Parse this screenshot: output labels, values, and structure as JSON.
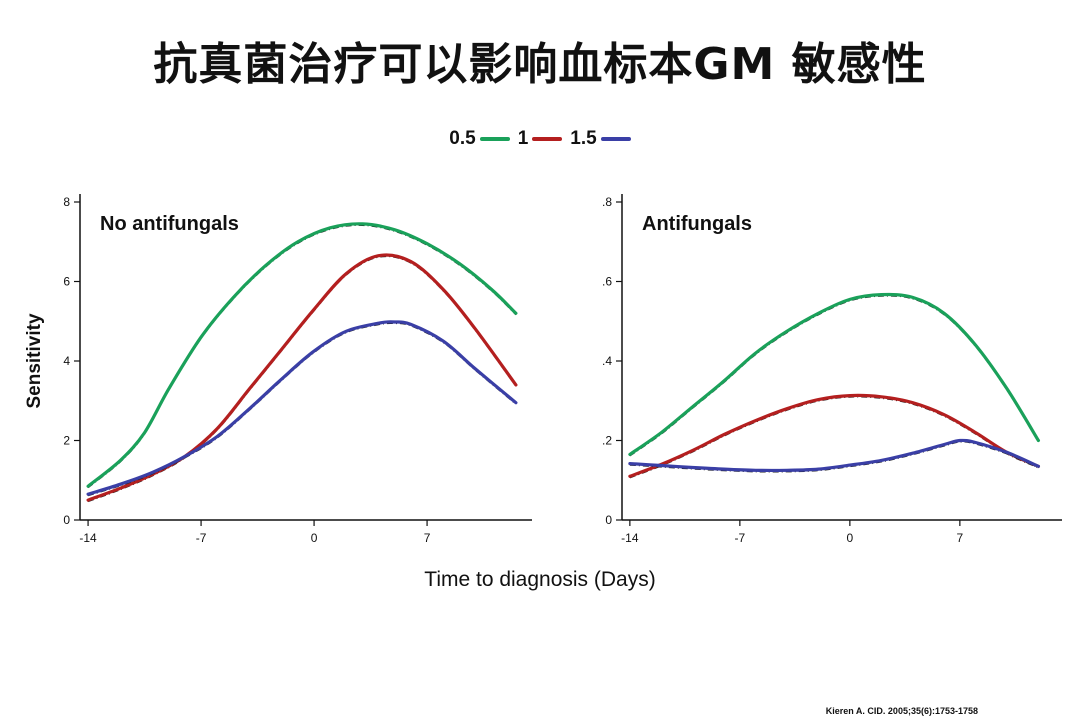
{
  "title": "抗真菌治疗可以影响血标本GM 敏感性",
  "legend": [
    {
      "label": "0.5",
      "color": "#1aa15a"
    },
    {
      "label": "1",
      "color": "#b41f1f"
    },
    {
      "label": "1.5",
      "color": "#3a3fa6"
    }
  ],
  "shared_xlabel": "Time to diagnosis  (Days)",
  "citation": "Kieren A. CID. 2005;35(6):1753-1758",
  "chart_data": [
    {
      "type": "line",
      "title": "No antifungals",
      "ylabel": "Sensitivity",
      "xlim": [
        -14.5,
        13.5
      ],
      "ylim": [
        0,
        8
      ],
      "xticks": [
        -14,
        -7,
        0,
        7
      ],
      "xtick_labels": [
        "-14",
        "-7",
        "0",
        "7"
      ],
      "yticks": [
        0,
        2,
        4,
        6,
        8
      ],
      "ytick_labels": [
        "0",
        "2",
        "4",
        "6",
        "8"
      ],
      "series": [
        {
          "name": "0.5",
          "color": "#1aa15a",
          "x": [
            -14,
            -12,
            -10.5,
            -9,
            -7,
            -5,
            -3,
            -1,
            1,
            3,
            5,
            7,
            9,
            11,
            12.5
          ],
          "y": [
            0.85,
            1.5,
            2.2,
            3.3,
            4.6,
            5.6,
            6.4,
            7.0,
            7.35,
            7.45,
            7.3,
            6.95,
            6.45,
            5.8,
            5.2
          ]
        },
        {
          "name": "1",
          "color": "#b41f1f",
          "x": [
            -14,
            -12,
            -10,
            -8,
            -6,
            -4,
            -2,
            0,
            2,
            4,
            6,
            8,
            10,
            12.5
          ],
          "y": [
            0.5,
            0.8,
            1.15,
            1.6,
            2.3,
            3.3,
            4.3,
            5.3,
            6.2,
            6.65,
            6.5,
            5.8,
            4.8,
            3.4
          ]
        },
        {
          "name": "1.5",
          "color": "#3a3fa6",
          "x": [
            -14,
            -12,
            -10,
            -8,
            -6,
            -4,
            -2,
            0,
            2,
            4,
            5,
            6,
            8,
            10,
            12.5
          ],
          "y": [
            0.65,
            0.9,
            1.2,
            1.6,
            2.1,
            2.8,
            3.55,
            4.25,
            4.75,
            4.95,
            4.98,
            4.92,
            4.5,
            3.8,
            2.95
          ]
        }
      ]
    },
    {
      "type": "line",
      "title": "Antifungals",
      "ylabel": "",
      "xlim": [
        -14.5,
        13.5
      ],
      "ylim": [
        0,
        0.8
      ],
      "xticks": [
        -14,
        -7,
        0,
        7
      ],
      "xtick_labels": [
        "-14",
        "-7",
        "0",
        "7"
      ],
      "yticks": [
        0,
        0.2,
        0.4,
        0.6,
        0.8
      ],
      "ytick_labels": [
        "0",
        ".2",
        ".4",
        ".6",
        ".8"
      ],
      "series": [
        {
          "name": "0.5",
          "color": "#1aa15a",
          "x": [
            -14,
            -12,
            -10,
            -8,
            -6,
            -4,
            -2,
            0,
            2,
            4,
            6,
            8,
            10,
            12
          ],
          "y": [
            0.165,
            0.22,
            0.285,
            0.35,
            0.42,
            0.475,
            0.52,
            0.555,
            0.567,
            0.56,
            0.52,
            0.44,
            0.33,
            0.2
          ]
        },
        {
          "name": "1",
          "color": "#b41f1f",
          "x": [
            -14,
            -12,
            -10,
            -8,
            -6,
            -4,
            -2,
            0,
            2,
            4,
            6,
            8,
            10,
            12
          ],
          "y": [
            0.11,
            0.14,
            0.175,
            0.215,
            0.25,
            0.28,
            0.303,
            0.313,
            0.31,
            0.295,
            0.265,
            0.22,
            0.17,
            0.135
          ]
        },
        {
          "name": "1.5",
          "color": "#3a3fa6",
          "x": [
            -14,
            -12,
            -10,
            -8,
            -6,
            -4,
            -2,
            0,
            2,
            4,
            6,
            7,
            8,
            10,
            12
          ],
          "y": [
            0.142,
            0.137,
            0.132,
            0.128,
            0.125,
            0.125,
            0.128,
            0.138,
            0.15,
            0.168,
            0.19,
            0.2,
            0.195,
            0.17,
            0.135
          ]
        }
      ]
    }
  ]
}
